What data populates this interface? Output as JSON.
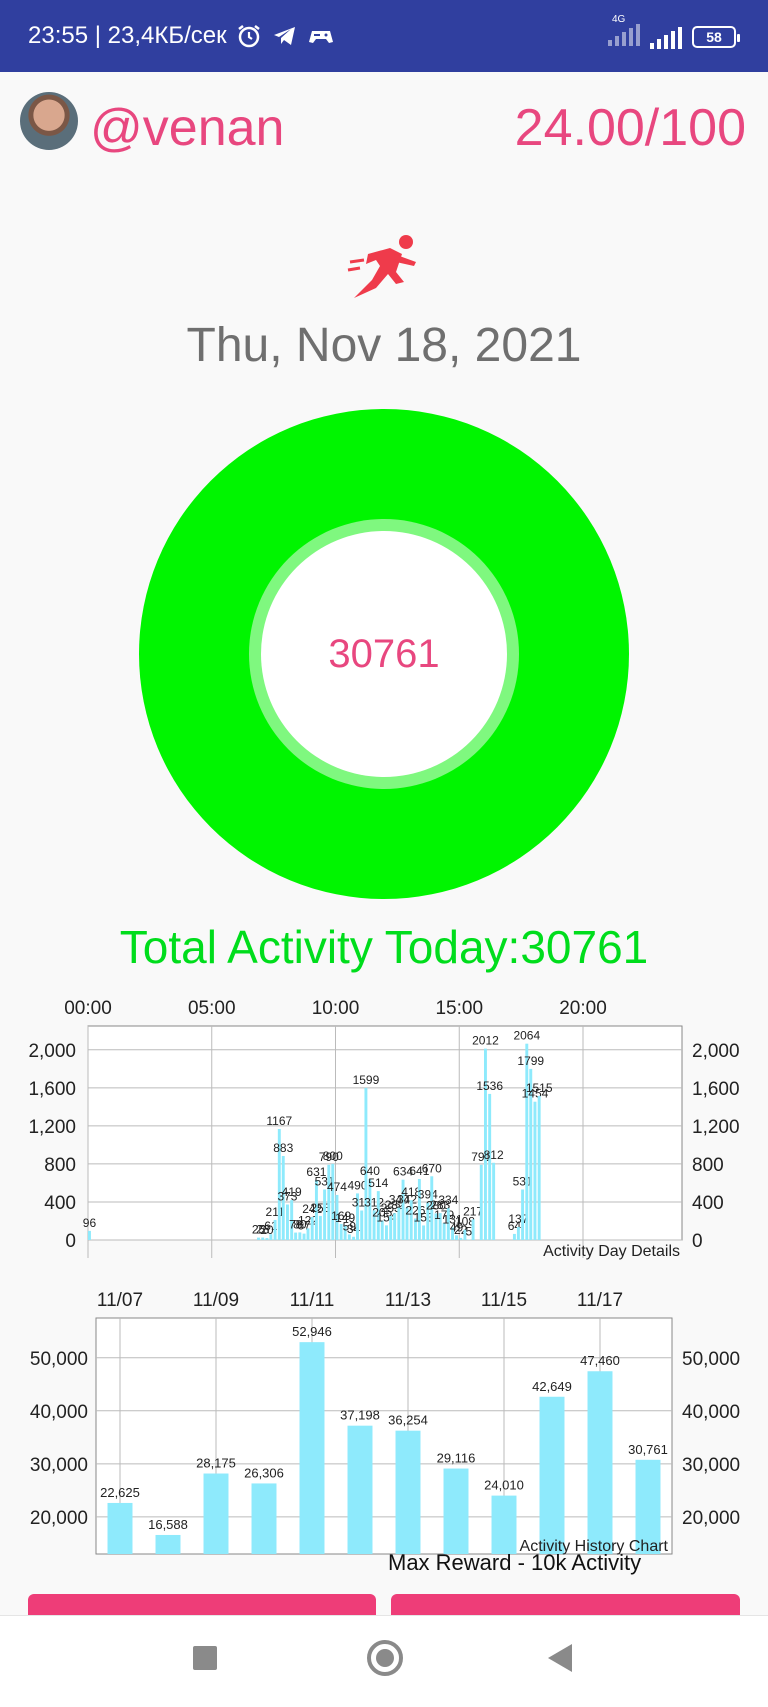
{
  "status_bar": {
    "time_speed": "23:55 | 23,4КБ/сек",
    "network": "4G",
    "battery": "58"
  },
  "header": {
    "username": "@venan",
    "score": "24.00/100"
  },
  "date": "Thu, Nov 18, 2021",
  "ring": {
    "value": "30761",
    "color": "#00f500"
  },
  "total_label": "Total Activity Today:30761",
  "chart_data": [
    {
      "type": "bar",
      "label": "Activity Day Details",
      "x_tick_labels": [
        "00:00",
        "05:00",
        "10:00",
        "15:00",
        "20:00"
      ],
      "y_tick_labels": [
        "2,000",
        "1,600",
        "1,200",
        "800",
        "400",
        "0"
      ],
      "ylim": [
        0,
        2250
      ],
      "bar_color": "#8eeafc",
      "points": [
        {
          "t": 0.0,
          "v": 96,
          "l": "96"
        },
        {
          "t": 6.83,
          "v": 25,
          "l": "25"
        },
        {
          "t": 7.0,
          "v": 26,
          "l": "26"
        },
        {
          "t": 7.17,
          "v": 20,
          "l": "20"
        },
        {
          "t": 7.33,
          "v": 61,
          "l": "61"
        },
        {
          "t": 7.5,
          "v": 211,
          "l": "211"
        },
        {
          "t": 7.67,
          "v": 1167,
          "l": "1167"
        },
        {
          "t": 7.83,
          "v": 883,
          "l": "883"
        },
        {
          "t": 8.0,
          "v": 373,
          "l": "373"
        },
        {
          "t": 8.17,
          "v": 419,
          "l": "419"
        },
        {
          "t": 8.33,
          "v": 78,
          "l": "78"
        },
        {
          "t": 8.5,
          "v": 80,
          "l": "80"
        },
        {
          "t": 8.67,
          "v": 67,
          "l": "67"
        },
        {
          "t": 8.83,
          "v": 122,
          "l": "122"
        },
        {
          "t": 9.0,
          "v": 242,
          "l": "242"
        },
        {
          "t": 9.17,
          "v": 631,
          "l": "631"
        },
        {
          "t": 9.33,
          "v": 253,
          "l": "253"
        },
        {
          "t": 9.5,
          "v": 531,
          "l": "531"
        },
        {
          "t": 9.67,
          "v": 790,
          "l": "790"
        },
        {
          "t": 9.83,
          "v": 800,
          "l": "800"
        },
        {
          "t": 10.0,
          "v": 474,
          "l": "474"
        },
        {
          "t": 10.17,
          "v": 169,
          "l": "169"
        },
        {
          "t": 10.33,
          "v": 149,
          "l": "149"
        },
        {
          "t": 10.5,
          "v": 59,
          "l": "59"
        },
        {
          "t": 10.67,
          "v": 34,
          "l": "34"
        },
        {
          "t": 10.83,
          "v": 490,
          "l": "490"
        },
        {
          "t": 11.0,
          "v": 310,
          "l": "310"
        },
        {
          "t": 11.17,
          "v": 1599,
          "l": "1599"
        },
        {
          "t": 11.33,
          "v": 640,
          "l": "640"
        },
        {
          "t": 11.5,
          "v": 312,
          "l": "312"
        },
        {
          "t": 11.67,
          "v": 514,
          "l": "514"
        },
        {
          "t": 11.83,
          "v": 205,
          "l": "205"
        },
        {
          "t": 12.0,
          "v": 154,
          "l": "154"
        },
        {
          "t": 12.17,
          "v": 253,
          "l": "253"
        },
        {
          "t": 12.33,
          "v": 282,
          "l": "282"
        },
        {
          "t": 12.5,
          "v": 340,
          "l": "340"
        },
        {
          "t": 12.67,
          "v": 634,
          "l": "634"
        },
        {
          "t": 12.83,
          "v": 342,
          "l": "342"
        },
        {
          "t": 13.0,
          "v": 418,
          "l": "418"
        },
        {
          "t": 13.17,
          "v": 226,
          "l": "226"
        },
        {
          "t": 13.33,
          "v": 641,
          "l": "641"
        },
        {
          "t": 13.5,
          "v": 153,
          "l": "153"
        },
        {
          "t": 13.67,
          "v": 394,
          "l": "394"
        },
        {
          "t": 13.83,
          "v": 670,
          "l": "670"
        },
        {
          "t": 14.0,
          "v": 280,
          "l": "280"
        },
        {
          "t": 14.17,
          "v": 283,
          "l": "283"
        },
        {
          "t": 14.33,
          "v": 179,
          "l": "179"
        },
        {
          "t": 14.5,
          "v": 334,
          "l": "334"
        },
        {
          "t": 14.67,
          "v": 131,
          "l": "131"
        },
        {
          "t": 14.83,
          "v": 49,
          "l": "49"
        },
        {
          "t": 15.0,
          "v": 22,
          "l": "22"
        },
        {
          "t": 15.17,
          "v": 108,
          "l": "108"
        },
        {
          "t": 15.33,
          "v": 5,
          "l": "5"
        },
        {
          "t": 15.5,
          "v": 217,
          "l": "217"
        },
        {
          "t": 15.83,
          "v": 791,
          "l": "791"
        },
        {
          "t": 16.0,
          "v": 2012,
          "l": "2012"
        },
        {
          "t": 16.17,
          "v": 1536,
          "l": "1536"
        },
        {
          "t": 16.33,
          "v": 812,
          "l": "812"
        },
        {
          "t": 17.17,
          "v": 64,
          "l": "64"
        },
        {
          "t": 17.33,
          "v": 137,
          "l": "137"
        },
        {
          "t": 17.5,
          "v": 531,
          "l": "531"
        },
        {
          "t": 17.67,
          "v": 2064,
          "l": "2064"
        },
        {
          "t": 17.83,
          "v": 1799,
          "l": "1799"
        },
        {
          "t": 18.0,
          "v": 1454,
          "l": "1454"
        },
        {
          "t": 18.17,
          "v": 1515,
          "l": "1515"
        }
      ]
    },
    {
      "type": "bar",
      "label": "Activity History Chart",
      "overlay_text": "Max Reward - 10k Activity",
      "x_tick_labels": [
        "11/07",
        "11/09",
        "11/11",
        "11/13",
        "11/15",
        "11/17"
      ],
      "y_tick_labels": [
        "50,000",
        "40,000",
        "30,000",
        "20,000"
      ],
      "ylim": [
        13000,
        57500
      ],
      "bar_color": "#8eeafc",
      "bars": [
        {
          "x": "11/07",
          "v": 22625,
          "l": "22,625"
        },
        {
          "x": "11/08",
          "v": 16588,
          "l": "16,588"
        },
        {
          "x": "11/09",
          "v": 28175,
          "l": "28,175"
        },
        {
          "x": "11/10",
          "v": 26306,
          "l": "26,306"
        },
        {
          "x": "11/11",
          "v": 52946,
          "l": "52,946"
        },
        {
          "x": "11/12",
          "v": 37198,
          "l": "37,198"
        },
        {
          "x": "11/13",
          "v": 36254,
          "l": "36,254"
        },
        {
          "x": "11/14",
          "v": 29116,
          "l": "29,116"
        },
        {
          "x": "11/15",
          "v": 24010,
          "l": "24,010"
        },
        {
          "x": "11/16",
          "v": 42649,
          "l": "42,649"
        },
        {
          "x": "11/17",
          "v": 47460,
          "l": "47,460"
        },
        {
          "x": "11/18",
          "v": 30761,
          "l": "30,761"
        }
      ]
    }
  ]
}
